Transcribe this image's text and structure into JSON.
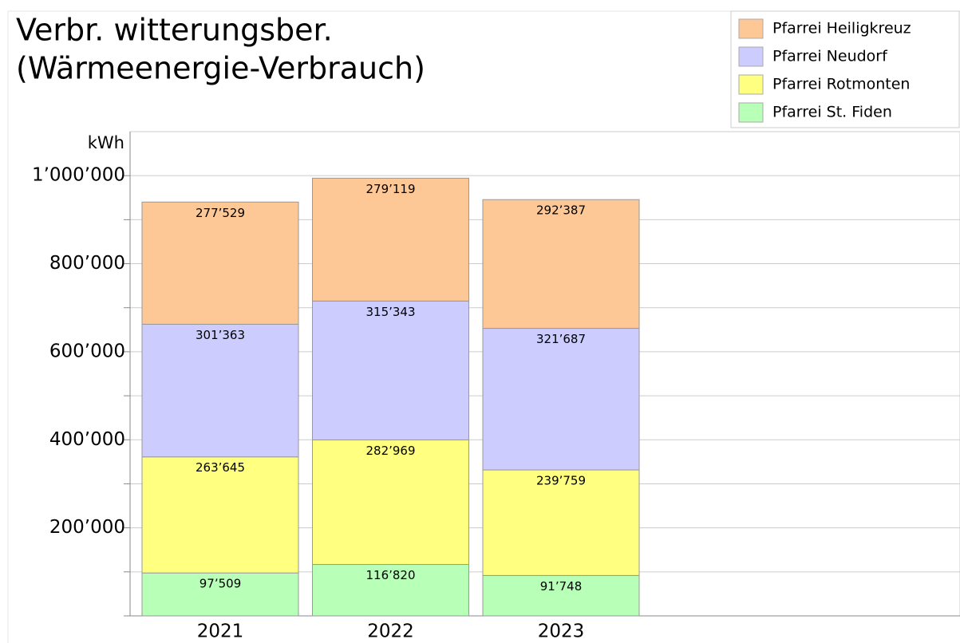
{
  "chart_data": {
    "type": "stacked_bar",
    "title": [
      "Verbr. witterungsber.",
      "(Wärmeenergie-Verbrauch)"
    ],
    "y_label": "kWh",
    "categories": [
      "2021",
      "2022",
      "2023"
    ],
    "series": [
      {
        "name": "Pfarrei St. Fiden",
        "color": "#b8ffb8",
        "values": [
          97509,
          116820,
          91748
        ],
        "value_labels": [
          "97’509",
          "116’820",
          "91’748"
        ]
      },
      {
        "name": "Pfarrei Rotmonten",
        "color": "#ffff80",
        "values": [
          263645,
          282969,
          239759
        ],
        "value_labels": [
          "263’645",
          "282’969",
          "239’759"
        ]
      },
      {
        "name": "Pfarrei Neudorf",
        "color": "#ccccff",
        "values": [
          301363,
          315343,
          321687
        ],
        "value_labels": [
          "301’363",
          "315’343",
          "321’687"
        ]
      },
      {
        "name": "Pfarrei Heiligkreuz",
        "color": "#fdc896",
        "values": [
          277529,
          279119,
          292387
        ],
        "value_labels": [
          "277’529",
          "279’119",
          "292’387"
        ]
      }
    ],
    "ylim": [
      0,
      1100000
    ],
    "yticks": [
      {
        "value": 100000,
        "label": null
      },
      {
        "value": 200000,
        "label": "200’000"
      },
      {
        "value": 300000,
        "label": null
      },
      {
        "value": 400000,
        "label": "400’000"
      },
      {
        "value": 500000,
        "label": null
      },
      {
        "value": 600000,
        "label": "600’000"
      },
      {
        "value": 700000,
        "label": null
      },
      {
        "value": 800000,
        "label": "800’000"
      },
      {
        "value": 900000,
        "label": null
      },
      {
        "value": 1000000,
        "label": "1’000’000"
      }
    ],
    "grid": true,
    "legend": "top-right"
  }
}
